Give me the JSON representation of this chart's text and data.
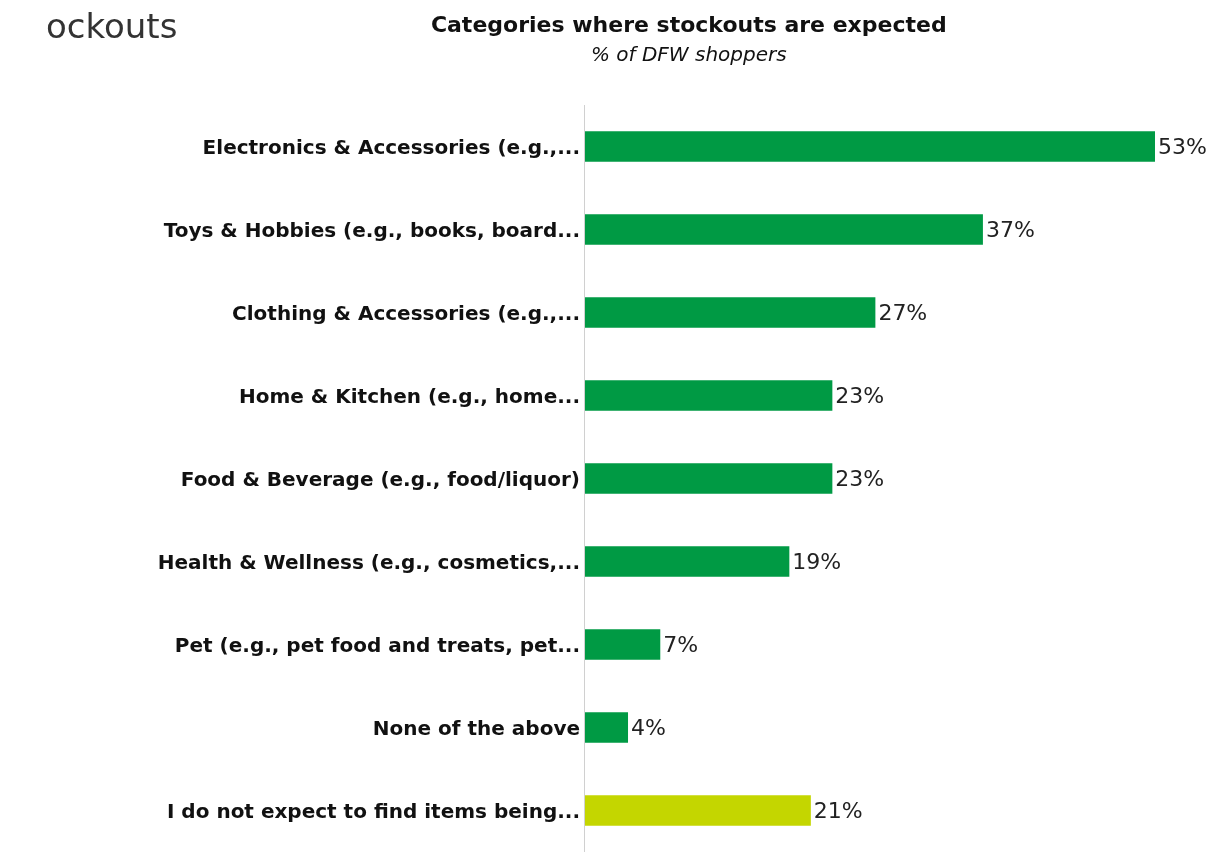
{
  "chart_data": {
    "type": "bar",
    "orientation": "horizontal",
    "title": "Categories where stockouts are expected",
    "subtitle": "% of DFW shoppers",
    "annotations": [
      "ockouts"
    ],
    "categories": [
      "Electronics & Accessories (e.g.,...",
      "Toys & Hobbies (e.g., books, board...",
      "Clothing & Accessories (e.g.,...",
      "Home & Kitchen (e.g., home...",
      "Food & Beverage (e.g., food/liquor)",
      "Health & Wellness (e.g., cosmetics,...",
      "Pet (e.g., pet food and treats, pet...",
      "None of the above",
      "I do not expect to find items being..."
    ],
    "values": [
      53,
      37,
      27,
      23,
      23,
      19,
      7,
      4,
      21
    ],
    "value_labels": [
      "53%",
      "37%",
      "27%",
      "23%",
      "23%",
      "19%",
      "7%",
      "4%",
      "21%"
    ],
    "colors": [
      "#009a44",
      "#009a44",
      "#009a44",
      "#009a44",
      "#009a44",
      "#009a44",
      "#009a44",
      "#009a44",
      "#c4d600"
    ],
    "legend": false
  }
}
